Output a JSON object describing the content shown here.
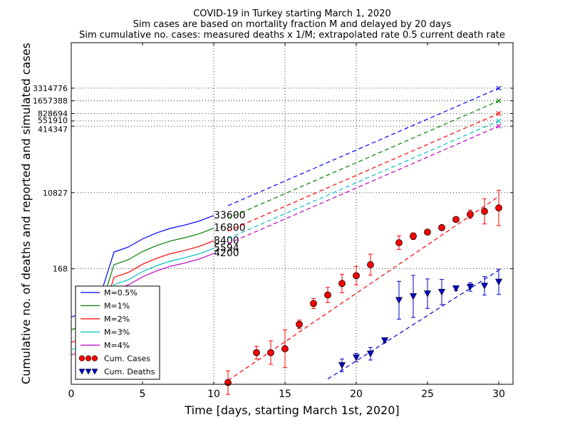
{
  "chart_data": {
    "type": "line",
    "title_lines": [
      "COVID-19 in Turkey starting March 1, 2020",
      "Sim cases are based on mortality fraction M and delayed by 20 days",
      "Sim cumulative no. cases: measured deaths x 1/M; extrapolated rate 0.5 current death rate"
    ],
    "xlabel": "Time [days, starting March 1st, 2020]",
    "ylabel": "Cumulative no. of deaths and reported and simulated cases",
    "xlim": [
      0,
      31
    ],
    "ylim": [
      0.3,
      40000000
    ],
    "y_scale": "log",
    "x_ticks": [
      0,
      5,
      10,
      15,
      20,
      25,
      30
    ],
    "y_ticks": [
      168,
      10827,
      414347,
      551910,
      828694,
      1657388,
      3314776
    ],
    "grid": "dotted at y ticks and x = 10, 15, 20",
    "series": [
      {
        "name": "M=0.5%",
        "color": "#0000ff",
        "x": [
          0,
          1,
          2,
          3,
          4,
          5,
          6,
          7,
          8,
          9,
          10
        ],
        "y": [
          12,
          15,
          35,
          420,
          550,
          860,
          1200,
          1550,
          1850,
          2300,
          3100
        ],
        "end_label": "33600",
        "extrap": {
          "x": [
            11,
            30
          ],
          "y": [
            5300,
            3314776
          ]
        }
      },
      {
        "name": "M=1%",
        "color": "#008000",
        "x": [
          0,
          1,
          2,
          3,
          4,
          5,
          6,
          7,
          8,
          9,
          10
        ],
        "y": [
          6,
          7.5,
          17.5,
          210,
          275,
          430,
          600,
          775,
          925,
          1150,
          1550
        ],
        "end_label": "16800",
        "extrap": {
          "x": [
            11,
            30
          ],
          "y": [
            2650,
            1657388
          ]
        }
      },
      {
        "name": "M=2%",
        "color": "#ff0000",
        "x": [
          0,
          1,
          2,
          3,
          4,
          5,
          6,
          7,
          8,
          9,
          10
        ],
        "y": [
          3,
          3.75,
          8.75,
          105,
          137,
          215,
          300,
          387,
          462,
          575,
          775
        ],
        "end_label": "8400",
        "extrap": {
          "x": [
            11,
            30
          ],
          "y": [
            1325,
            828694
          ]
        }
      },
      {
        "name": "M=3%",
        "color": "#00bfbf",
        "x": [
          0,
          1,
          2,
          3,
          4,
          5,
          6,
          7,
          8,
          9,
          10
        ],
        "y": [
          2,
          2.5,
          5.8,
          70,
          92,
          143,
          200,
          258,
          308,
          383,
          517
        ],
        "end_label": "5594",
        "extrap": {
          "x": [
            11,
            30
          ],
          "y": [
            883,
            551910
          ]
        }
      },
      {
        "name": "M=4%",
        "color": "#bf00bf",
        "x": [
          0,
          1,
          2,
          3,
          4,
          5,
          6,
          7,
          8,
          9,
          10
        ],
        "y": [
          1.5,
          1.9,
          4.4,
          52,
          69,
          108,
          150,
          194,
          231,
          288,
          388
        ],
        "end_label": "4200",
        "extrap": {
          "x": [
            11,
            30
          ],
          "y": [
            662,
            414347
          ]
        }
      }
    ],
    "cases": {
      "name": "Cum. Cases",
      "color": "#ff0000",
      "x": [
        11,
        13,
        14,
        15,
        16,
        17,
        18,
        19,
        20,
        21,
        23,
        24,
        25,
        26,
        27,
        28,
        29,
        30
      ],
      "y": [
        0.33,
        1.7,
        1.7,
        2.1,
        8,
        25,
        40,
        75,
        115,
        210,
        700,
        1000,
        1250,
        1600,
        2500,
        3300,
        3900,
        4700
      ],
      "err": [
        0.28,
        0.15,
        0.28,
        0.45,
        0.1,
        0.12,
        0.18,
        0.22,
        0.22,
        0.25,
        0.16,
        0.08,
        0.06,
        0.06,
        0.05,
        0.1,
        0.3,
        0.42
      ],
      "fit": {
        "x": [
          11,
          30
        ],
        "y": [
          0.37,
          8800
        ]
      }
    },
    "deaths": {
      "name": "Cum. Deaths",
      "color": "#0000cc",
      "x": [
        19,
        20,
        21,
        22,
        23,
        24,
        25,
        26,
        27,
        28,
        29,
        30
      ],
      "y": [
        0.85,
        1.3,
        1.6,
        3.3,
        30,
        37,
        43,
        47,
        57,
        62,
        66,
        82
      ],
      "err": [
        0.15,
        0.1,
        0.15,
        0.05,
        0.45,
        0.5,
        0.35,
        0.3,
        0.05,
        0.1,
        0.22,
        0.3
      ],
      "fit": {
        "x": [
          18,
          30
        ],
        "y": [
          0.4,
          155
        ]
      }
    },
    "legend_placement": "lower-left"
  }
}
